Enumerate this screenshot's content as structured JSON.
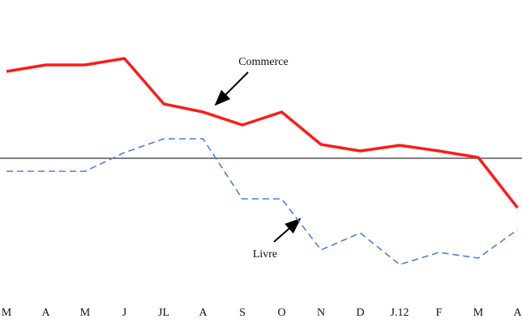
{
  "chart_data": {
    "type": "line",
    "categories": [
      "M",
      "A",
      "M",
      "J",
      "JL",
      "A",
      "S",
      "O",
      "N",
      "D",
      "J.12",
      "F",
      "M",
      "A"
    ],
    "series": [
      {
        "name": "Commerce",
        "color": "#ff1a1a",
        "values": [
          10.7,
          11.5,
          11.5,
          12.3,
          6.7,
          5.7,
          4.1,
          5.7,
          1.7,
          0.9,
          1.6,
          0.9,
          0.1,
          -6.1
        ]
      },
      {
        "name": "Livre",
        "color": "#4a7fe0",
        "values": [
          -1.6,
          -1.6,
          -1.6,
          0.7,
          2.4,
          2.4,
          -5,
          -5,
          -11.3,
          -9.2,
          -13.1,
          -11.6,
          -12.3,
          -8.8
        ]
      }
    ],
    "ylim": [
      -16.5,
      19.5
    ]
  }
}
